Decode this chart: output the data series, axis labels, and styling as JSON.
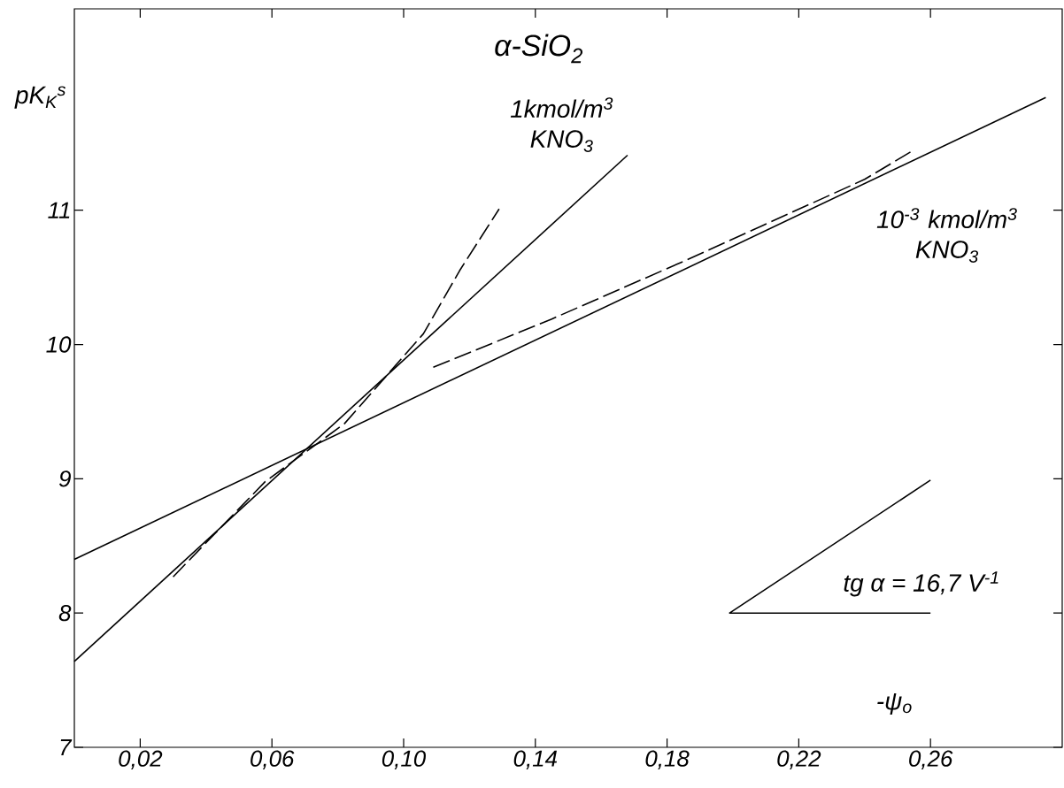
{
  "chart_data": {
    "type": "line",
    "title": "α-SiO$_{2}$",
    "xlabel": "-ψ$_{o}$",
    "ylabel": "pK$_{K}$$^{s}$",
    "xlim": [
      0,
      0.3
    ],
    "ylim": [
      7,
      12.5
    ],
    "xticks": [
      {
        "value": 0.02,
        "label": "0,02"
      },
      {
        "value": 0.06,
        "label": "0,06"
      },
      {
        "value": 0.1,
        "label": "0,10"
      },
      {
        "value": 0.14,
        "label": "0,14"
      },
      {
        "value": 0.18,
        "label": "0,18"
      },
      {
        "value": 0.22,
        "label": "0,22"
      },
      {
        "value": 0.26,
        "label": "0,26"
      }
    ],
    "yticks": [
      7,
      8,
      9,
      10,
      11
    ],
    "grid": false,
    "legend": false,
    "marker": "none",
    "series": [
      {
        "name": "1kmol/m$^{3}$ KNO$_{3}$",
        "color": "#000000",
        "line_style": "solid",
        "x": [
          0.0,
          0.168
        ],
        "values": [
          7.64,
          11.41
        ]
      },
      {
        "color": "#000000",
        "line_style": "dashed",
        "x": [
          0.03,
          0.058,
          0.082,
          0.106,
          0.117,
          0.129
        ],
        "values": [
          8.27,
          8.98,
          9.41,
          10.08,
          10.55,
          11.01
        ]
      },
      {
        "name": "10$^{-3}$ kmol/m$^{3}$ KNO$_{3}$",
        "color": "#000000",
        "line_style": "solid",
        "x": [
          0.0,
          0.295
        ],
        "values": [
          8.4,
          11.84
        ]
      },
      {
        "color": "#000000",
        "line_style": "dashed",
        "x": [
          0.109,
          0.145,
          0.186,
          0.24,
          0.255
        ],
        "values": [
          9.83,
          10.19,
          10.63,
          11.23,
          11.45
        ]
      },
      {
        "color": "#000000",
        "line_style": "solid",
        "x": [
          0.26,
          0.199,
          0.26
        ],
        "values": [
          8.99,
          8.0,
          8.0
        ]
      }
    ],
    "annotations": [
      "tg α = 16,7 V$^{-1}$"
    ]
  }
}
